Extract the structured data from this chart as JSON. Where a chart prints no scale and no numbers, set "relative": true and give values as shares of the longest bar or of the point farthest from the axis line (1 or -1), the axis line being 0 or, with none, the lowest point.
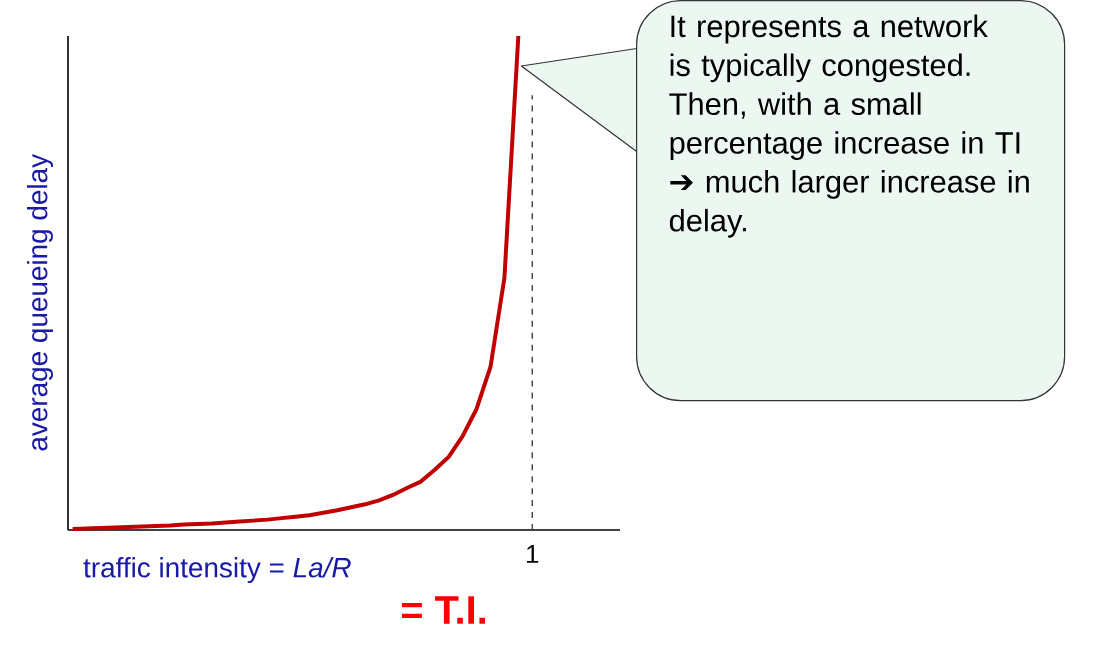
{
  "chart_data": {
    "type": "line",
    "xlabel": "traffic intensity = *La/R*",
    "ylabel": "average  queueing delay",
    "relative": true,
    "categories": [
      null,
      null,
      null,
      null,
      null,
      null,
      null,
      null,
      null,
      null,
      null,
      null,
      null,
      null,
      null,
      null,
      null,
      null,
      null,
      null,
      null,
      null,
      null,
      null,
      null,
      null,
      null,
      null,
      null,
      null,
      null,
      null,
      null,
      null
    ],
    "series": [
      {
        "color": "#c00000",
        "values": [
          0.002,
          0.003,
          0.004,
          0.005,
          0.006,
          0.007,
          0.008,
          0.009,
          0.011,
          0.012,
          0.013,
          0.015,
          0.017,
          0.019,
          0.021,
          0.024,
          0.027,
          0.03,
          0.035,
          0.04,
          0.046,
          0.052,
          0.06,
          0.071,
          0.085,
          0.098,
          0.122,
          0.148,
          0.19,
          0.245,
          0.33,
          0.51,
          1,
          null
        ]
      }
    ],
    "ref_lines": [
      {
        "axis": "x",
        "label": "1",
        "color": "#404040",
        "line_style": "dashed"
      }
    ],
    "annotations": [
      "It represents a network is typically congested. Then, with a small percentage increase in TI ➔ much larger increase in delay.",
      "= T.I."
    ]
  }
}
